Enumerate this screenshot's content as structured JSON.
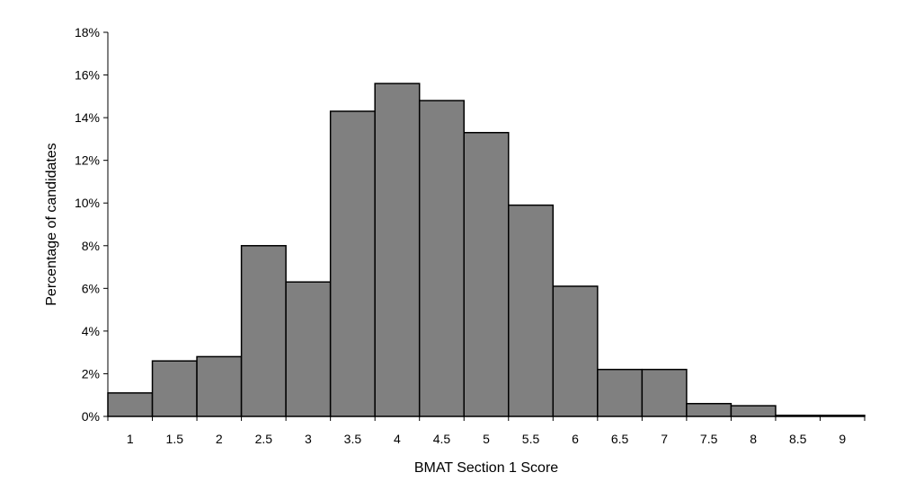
{
  "chart_data": {
    "type": "bar",
    "title": "",
    "xlabel": "BMAT Section 1 Score",
    "ylabel": "Percentage of candidates",
    "categories": [
      "1",
      "1.5",
      "2",
      "2.5",
      "3",
      "3.5",
      "4",
      "4.5",
      "5",
      "5.5",
      "6",
      "6.5",
      "7",
      "7.5",
      "8",
      "8.5",
      "9"
    ],
    "values": [
      1.1,
      2.6,
      2.8,
      8.0,
      6.3,
      14.3,
      15.6,
      14.8,
      13.3,
      9.9,
      6.1,
      2.2,
      2.2,
      0.6,
      0.5,
      0.05,
      0.05
    ],
    "ylim": [
      0,
      18
    ],
    "yticks": [
      0,
      2,
      4,
      6,
      8,
      10,
      12,
      14,
      16,
      18
    ],
    "ytick_labels": [
      "0%",
      "2%",
      "4%",
      "6%",
      "8%",
      "10%",
      "12%",
      "14%",
      "16%",
      "18%"
    ],
    "grid": false,
    "legend": "none",
    "bar_color": "#808080",
    "bar_edge_color": "#000000"
  }
}
